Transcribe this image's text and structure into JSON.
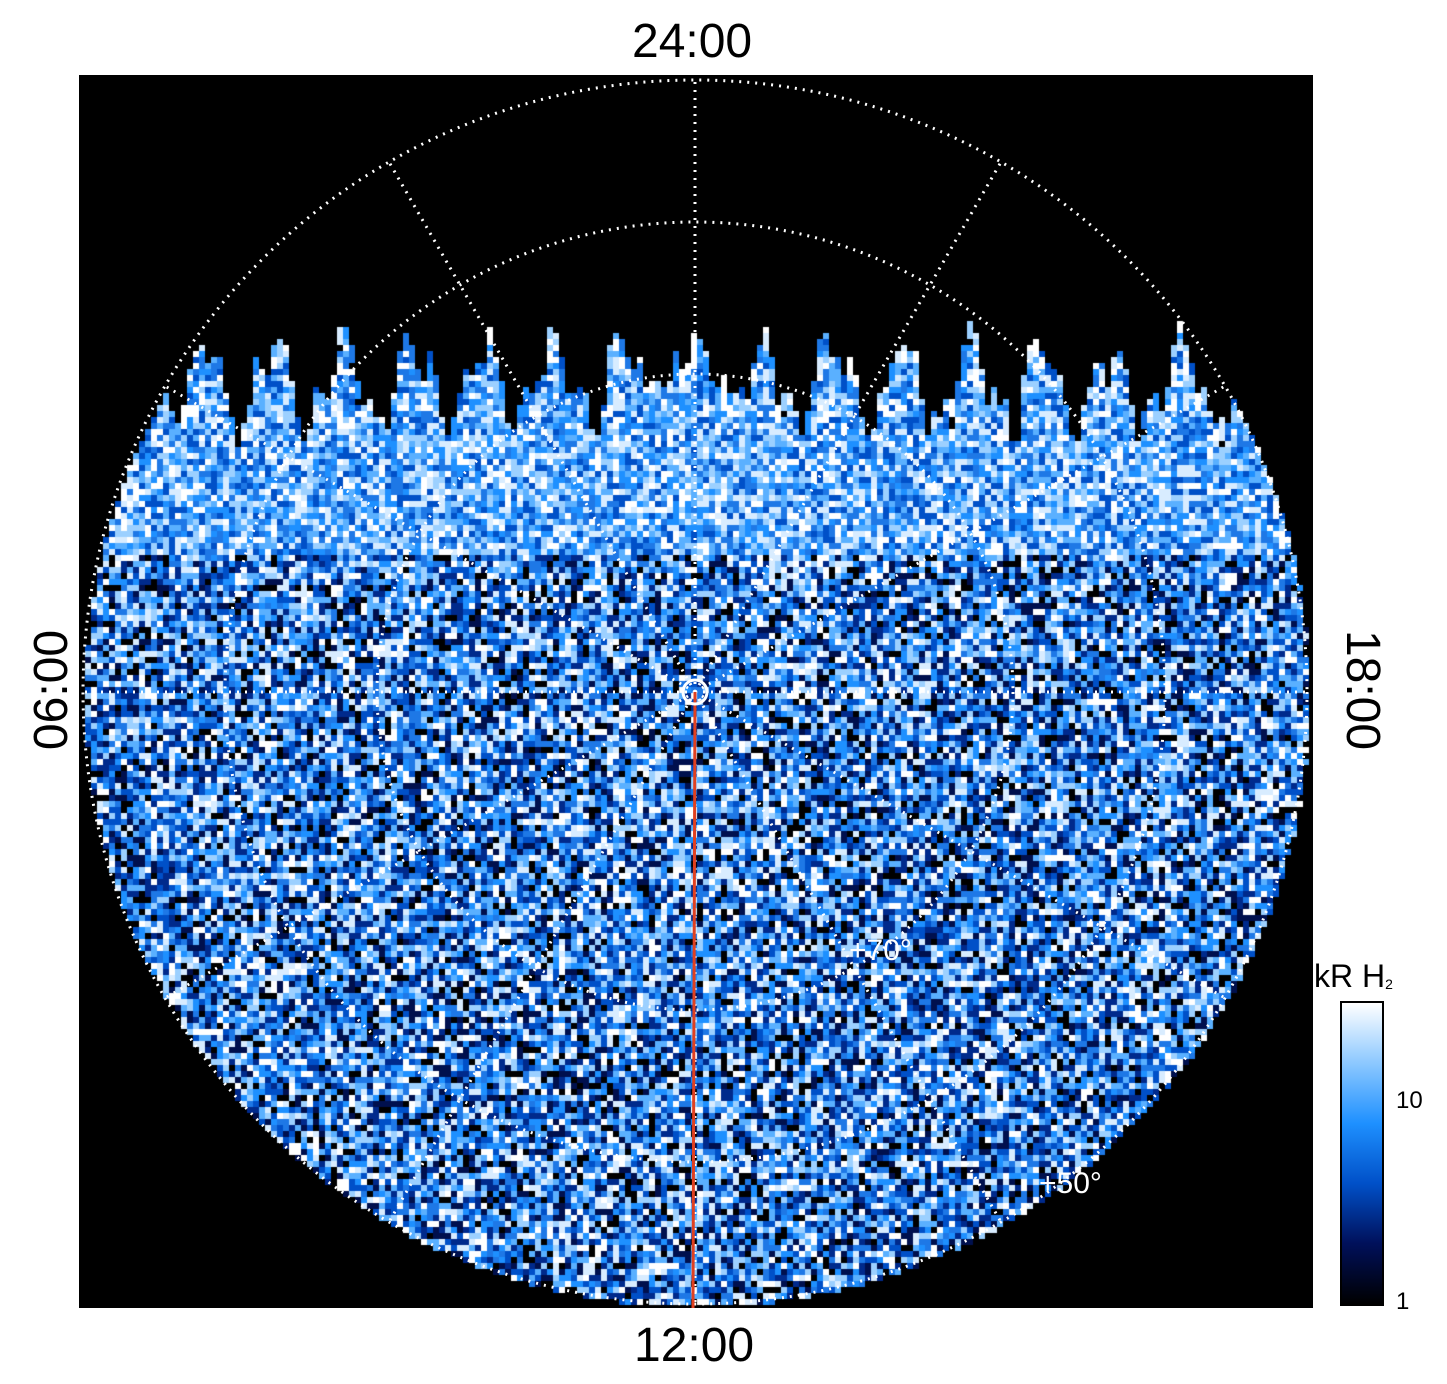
{
  "local_time_labels": {
    "top": "24:00",
    "bottom": "12:00",
    "left": "06:00",
    "right": "18:00"
  },
  "latitude_labels": [
    "+70°",
    "+50°"
  ],
  "colorbar": {
    "title_main": "kR H",
    "title_sub": "2",
    "ticks": [
      "10",
      "1"
    ],
    "scale": "log",
    "range": [
      1,
      30
    ],
    "colors": [
      "#000000",
      "#00105a",
      "#0050c8",
      "#1e90ff",
      "#8cc8ff",
      "#ffffff"
    ]
  },
  "colors": {
    "frame_background": "#000000",
    "grid": "#ffffff",
    "meridian_line": "#e04020"
  }
}
